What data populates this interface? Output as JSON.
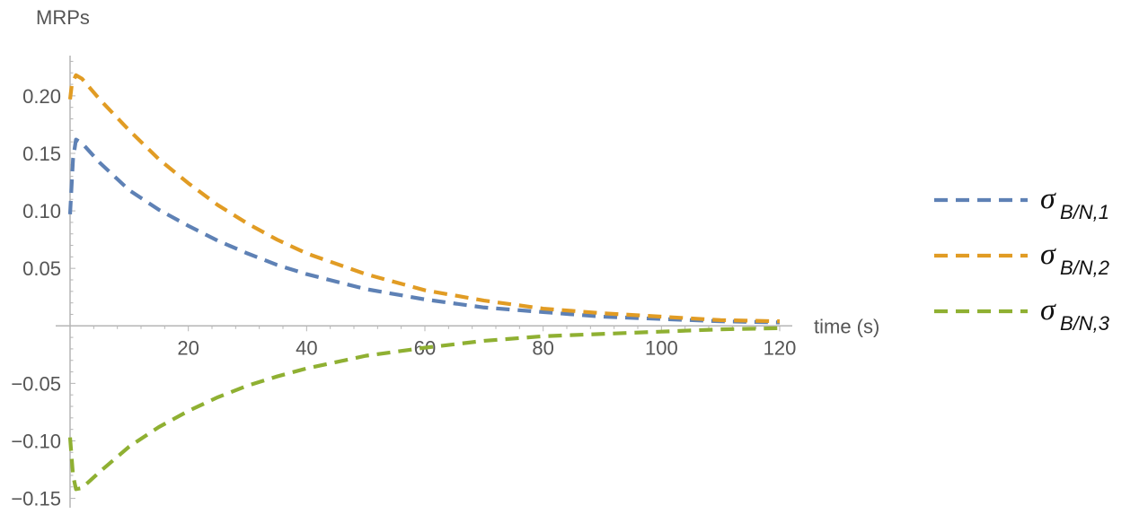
{
  "chart_data": {
    "type": "line",
    "xlabel": "time (s)",
    "ylabel": "MRPs",
    "xlim": [
      0,
      120
    ],
    "ylim": [
      -0.155,
      0.235
    ],
    "x_ticks": [
      20,
      40,
      60,
      80,
      100,
      120
    ],
    "x_tick_labels": [
      "20",
      "40",
      "60",
      "80",
      "100",
      "120"
    ],
    "y_ticks": [
      -0.15,
      -0.1,
      -0.05,
      0.05,
      0.1,
      0.15,
      0.2
    ],
    "y_tick_labels": [
      "−0.15",
      "−0.10",
      "−0.05",
      "0.05",
      "0.10",
      "0.15",
      "0.20"
    ],
    "grid": false,
    "legend_position": "right",
    "series": [
      {
        "name": "σB/N,1",
        "legend_symbol": "σ",
        "legend_sub": "B/N,1",
        "color": "#5E81B5",
        "dash": "dashed",
        "x": [
          0,
          0.5,
          1,
          2,
          5,
          10,
          15,
          20,
          25,
          30,
          35,
          40,
          50,
          60,
          70,
          80,
          90,
          100,
          110,
          120
        ],
        "y": [
          0.097,
          0.145,
          0.162,
          0.159,
          0.142,
          0.118,
          0.101,
          0.087,
          0.074,
          0.063,
          0.053,
          0.045,
          0.032,
          0.023,
          0.016,
          0.012,
          0.008,
          0.006,
          0.004,
          0.003
        ]
      },
      {
        "name": "σB/N,2",
        "legend_symbol": "σ",
        "legend_sub": "B/N,2",
        "color": "#E19C24",
        "dash": "dashed",
        "x": [
          0,
          0.3,
          1,
          2,
          5,
          10,
          15,
          20,
          25,
          30,
          35,
          40,
          50,
          60,
          70,
          80,
          90,
          100,
          110,
          120
        ],
        "y": [
          0.197,
          0.21,
          0.218,
          0.215,
          0.197,
          0.17,
          0.145,
          0.124,
          0.105,
          0.089,
          0.075,
          0.063,
          0.045,
          0.031,
          0.022,
          0.015,
          0.011,
          0.008,
          0.005,
          0.004
        ]
      },
      {
        "name": "σB/N,3",
        "legend_symbol": "σ",
        "legend_sub": "B/N,3",
        "color": "#8FB032",
        "dash": "dashed",
        "x": [
          0,
          0.5,
          1,
          2,
          5,
          10,
          15,
          20,
          25,
          30,
          35,
          40,
          50,
          60,
          70,
          80,
          90,
          100,
          110,
          120
        ],
        "y": [
          -0.097,
          -0.13,
          -0.142,
          -0.141,
          -0.127,
          -0.105,
          -0.088,
          -0.074,
          -0.062,
          -0.052,
          -0.044,
          -0.037,
          -0.026,
          -0.019,
          -0.013,
          -0.009,
          -0.007,
          -0.005,
          -0.003,
          -0.002
        ]
      }
    ]
  }
}
